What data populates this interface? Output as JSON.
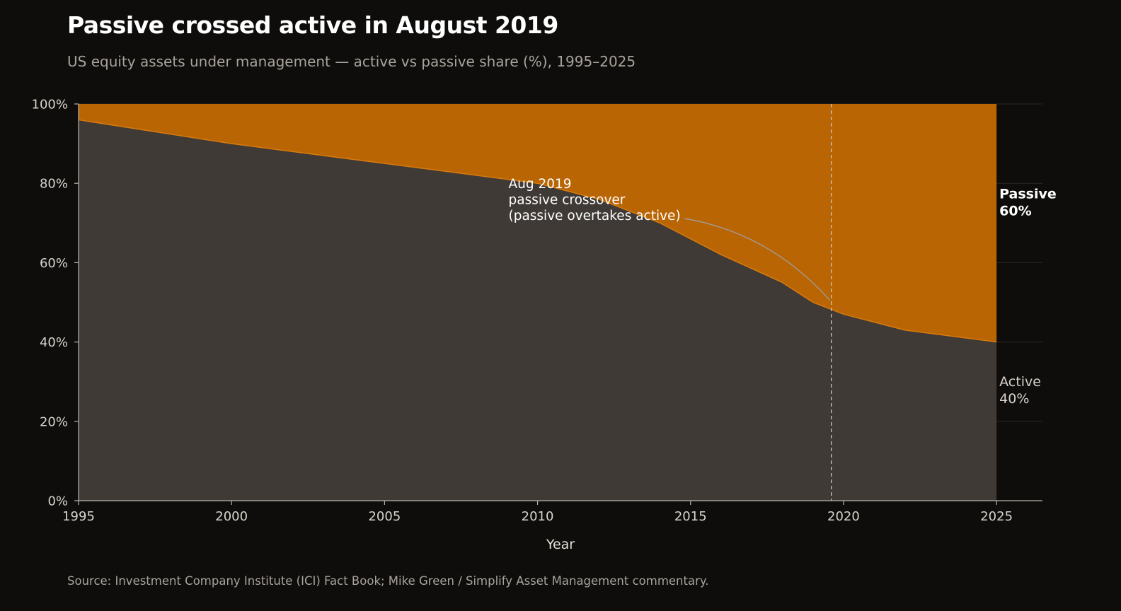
{
  "header": {
    "title": "Passive crossed active in August 2019",
    "subtitle": "US equity assets under management — active vs passive share (%), 1995–2025"
  },
  "footer": {
    "source": "Source: Investment Company Institute (ICI) Fact Book; Mike Green / Simplify Asset Management commentary."
  },
  "chart_data": {
    "type": "area",
    "stacked": true,
    "title": "Passive crossed active in August 2019",
    "xlabel": "Year",
    "ylabel": "",
    "xlim": [
      1995,
      2026.5
    ],
    "ylim": [
      0,
      100
    ],
    "x_ticks": [
      1995,
      2000,
      2005,
      2010,
      2015,
      2020,
      2025
    ],
    "y_ticks": [
      0,
      20,
      40,
      60,
      80,
      100
    ],
    "y_tick_labels": [
      "0%",
      "20%",
      "40%",
      "60%",
      "80%",
      "100%"
    ],
    "grid": "horizontal",
    "x": [
      1995,
      2000,
      2005,
      2010,
      2012,
      2014,
      2016,
      2018,
      2019,
      2020,
      2022,
      2025
    ],
    "series": [
      {
        "name": "Active",
        "color": "#3f3a36",
        "values": [
          96,
          90,
          85,
          80,
          76,
          70,
          62,
          55,
          50,
          47,
          43,
          40
        ]
      },
      {
        "name": "Passive",
        "color": "#b96504",
        "values": [
          4,
          10,
          15,
          20,
          24,
          30,
          38,
          45,
          50,
          53,
          57,
          60
        ]
      }
    ],
    "end_labels": {
      "passive": {
        "name": "Passive",
        "value": "60%"
      },
      "active": {
        "name": "Active",
        "value": "40%"
      }
    },
    "crossover": {
      "x": 2019.6,
      "label_lines": [
        "Aug 2019",
        "passive crossover",
        "(passive overtakes active)"
      ]
    }
  }
}
